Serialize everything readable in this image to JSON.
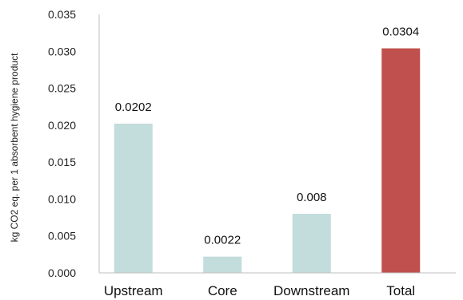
{
  "chart_data": {
    "type": "bar",
    "title": "",
    "xlabel": "",
    "ylabel": "kg CO2 eq. per 1 absorbent hygiene product",
    "categories": [
      "Upstream",
      "Core",
      "Downstream",
      "Total"
    ],
    "values": [
      0.0202,
      0.0022,
      0.008,
      0.0304
    ],
    "data_labels": [
      "0.0202",
      "0.0022",
      "0.008",
      "0.0304"
    ],
    "ylim": [
      0,
      0.035
    ],
    "yticks": [
      0.0,
      0.005,
      0.01,
      0.015,
      0.02,
      0.025,
      0.03,
      0.035
    ],
    "ytick_labels": [
      "0.000",
      "0.005",
      "0.010",
      "0.015",
      "0.020",
      "0.025",
      "0.030",
      "0.035"
    ],
    "grid": false,
    "legend": "none",
    "colors": {
      "default_bar": "#c3dcdc",
      "highlight_bar": "#c0504d",
      "axis": "#bfbfbf"
    },
    "highlight_index": 3
  }
}
